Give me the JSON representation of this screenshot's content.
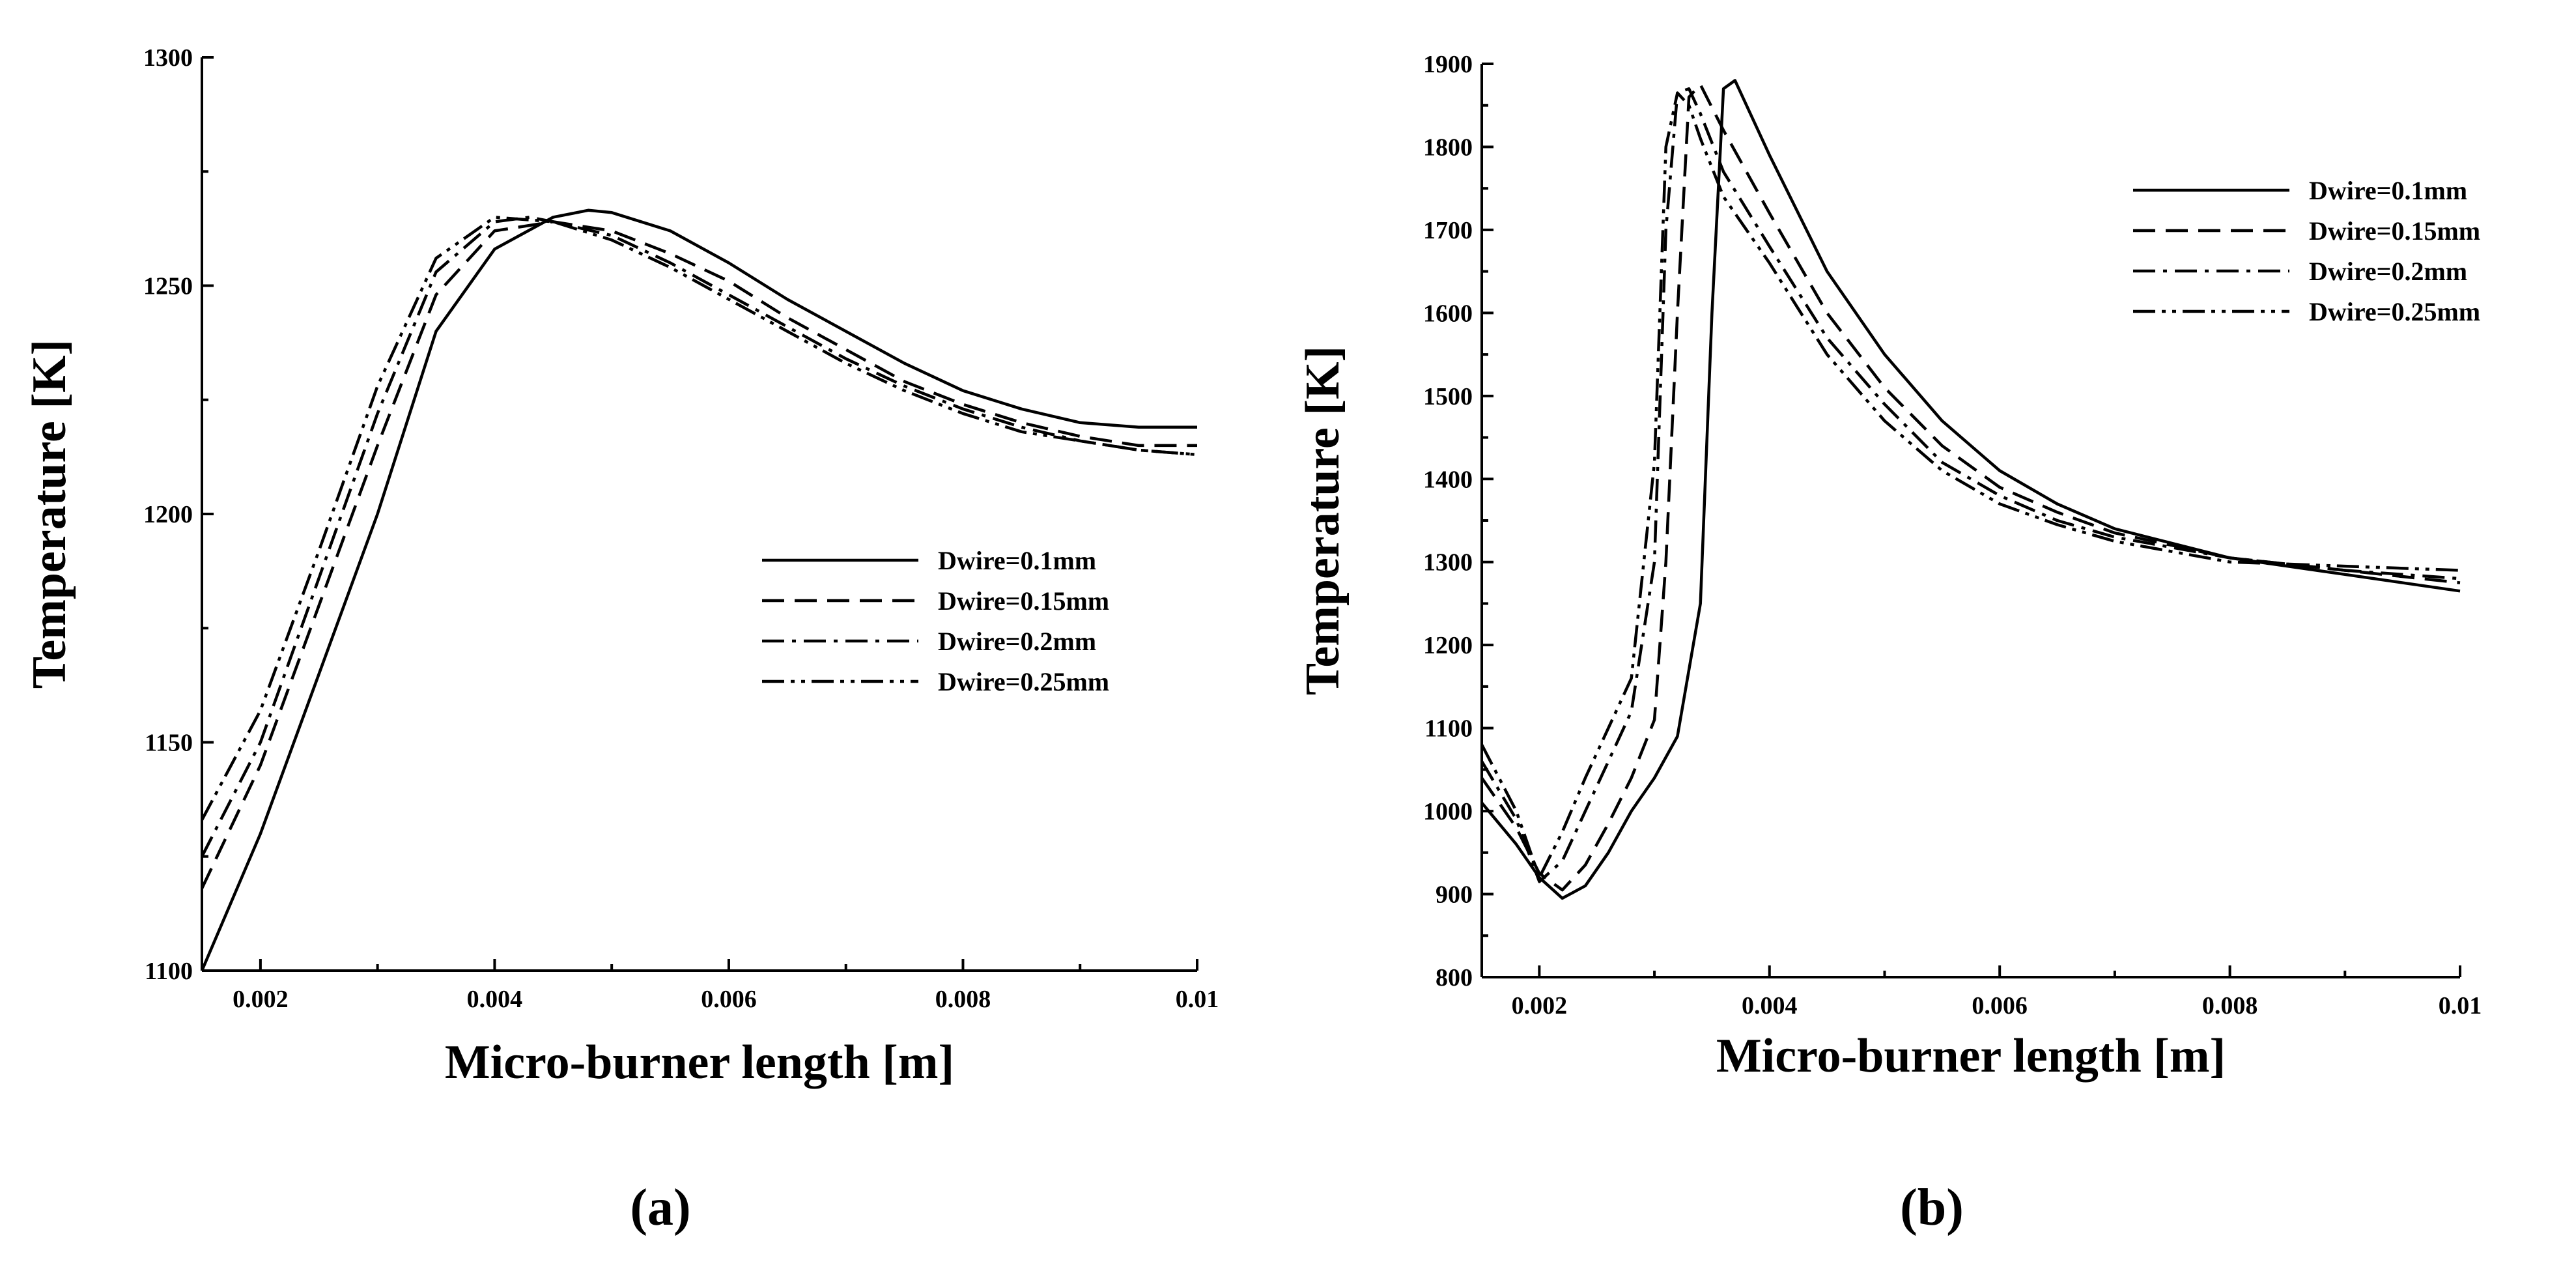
{
  "chart_data": [
    {
      "type": "line",
      "panel_label": "(a)",
      "xlabel": "Micro-burner length [m]",
      "ylabel": "Temperature [K]",
      "xlim": [
        0.0015,
        0.01
      ],
      "ylim": [
        1100,
        1300
      ],
      "xticks": [
        0.002,
        0.004,
        0.006,
        0.008,
        0.01
      ],
      "xtick_labels": [
        "0.002",
        "0.004",
        "0.006",
        "0.008",
        "0.01"
      ],
      "yticks": [
        1100,
        1150,
        1200,
        1250,
        1300
      ],
      "ytick_labels": [
        "1100",
        "1150",
        "1200",
        "1250",
        "1300"
      ],
      "legend_position": "middle-right",
      "series": [
        {
          "name": "Dwire=0.1mm",
          "style": "solid",
          "x": [
            0.0015,
            0.002,
            0.0025,
            0.003,
            0.0035,
            0.004,
            0.0045,
            0.0048,
            0.005,
            0.0055,
            0.006,
            0.0065,
            0.007,
            0.0075,
            0.008,
            0.0085,
            0.009,
            0.0095,
            0.01
          ],
          "y": [
            1100,
            1130,
            1165,
            1200,
            1240,
            1258,
            1265,
            1266.5,
            1266,
            1262,
            1255,
            1247,
            1240,
            1233,
            1227,
            1223,
            1220,
            1219,
            1219
          ]
        },
        {
          "name": "Dwire=0.15mm",
          "style": "dashed",
          "x": [
            0.0015,
            0.002,
            0.0025,
            0.003,
            0.0035,
            0.004,
            0.0045,
            0.005,
            0.0055,
            0.006,
            0.0065,
            0.007,
            0.0075,
            0.008,
            0.0085,
            0.009,
            0.0095,
            0.01
          ],
          "y": [
            1118,
            1145,
            1180,
            1215,
            1248,
            1262,
            1264,
            1262,
            1257,
            1251,
            1243,
            1236,
            1229,
            1224,
            1220,
            1217,
            1215,
            1215
          ]
        },
        {
          "name": "Dwire=0.2mm",
          "style": "dashdot",
          "x": [
            0.0015,
            0.002,
            0.0025,
            0.003,
            0.0035,
            0.004,
            0.0043,
            0.0045,
            0.005,
            0.0055,
            0.006,
            0.0065,
            0.007,
            0.0075,
            0.008,
            0.0085,
            0.009,
            0.0095,
            0.01
          ],
          "y": [
            1125,
            1150,
            1186,
            1222,
            1253,
            1264,
            1265,
            1264,
            1261,
            1255,
            1248,
            1241,
            1234,
            1228,
            1223,
            1219,
            1216,
            1214,
            1213
          ]
        },
        {
          "name": "Dwire=0.25mm",
          "style": "dashdotdot",
          "x": [
            0.0015,
            0.002,
            0.0025,
            0.003,
            0.0035,
            0.004,
            0.0045,
            0.005,
            0.0055,
            0.006,
            0.0065,
            0.007,
            0.0075,
            0.008,
            0.0085,
            0.009,
            0.0095,
            0.01
          ],
          "y": [
            1133,
            1157,
            1192,
            1228,
            1256,
            1265,
            1264,
            1260,
            1254,
            1247,
            1240,
            1233,
            1227,
            1222,
            1218,
            1216,
            1214,
            1213
          ]
        }
      ]
    },
    {
      "type": "line",
      "panel_label": "(b)",
      "xlabel": "Micro-burner length [m]",
      "ylabel": "Temperature [K]",
      "xlim": [
        0.0015,
        0.01
      ],
      "ylim": [
        800,
        1900
      ],
      "xticks": [
        0.002,
        0.004,
        0.006,
        0.008,
        0.01
      ],
      "xtick_labels": [
        "0.002",
        "0.004",
        "0.006",
        "0.008",
        "0.01"
      ],
      "yticks": [
        800,
        900,
        1000,
        1100,
        1200,
        1300,
        1400,
        1500,
        1600,
        1700,
        1800,
        1900
      ],
      "ytick_labels": [
        "800",
        "900",
        "1000",
        "1100",
        "1200",
        "1300",
        "1400",
        "1500",
        "1600",
        "1700",
        "1800",
        "1900"
      ],
      "legend_position": "top-right",
      "series": [
        {
          "name": "Dwire=0.1mm",
          "style": "solid",
          "x": [
            0.0015,
            0.0018,
            0.002,
            0.0022,
            0.0024,
            0.0026,
            0.0028,
            0.003,
            0.0032,
            0.0034,
            0.0035,
            0.0036,
            0.0037,
            0.004,
            0.0045,
            0.005,
            0.0055,
            0.006,
            0.0065,
            0.007,
            0.008,
            0.009,
            0.01
          ],
          "y": [
            1010,
            960,
            920,
            895,
            910,
            950,
            1000,
            1040,
            1090,
            1250,
            1600,
            1870,
            1880,
            1790,
            1650,
            1550,
            1470,
            1410,
            1370,
            1340,
            1305,
            1285,
            1265
          ]
        },
        {
          "name": "Dwire=0.15mm",
          "style": "dashed",
          "x": [
            0.0015,
            0.0018,
            0.002,
            0.0022,
            0.0024,
            0.0026,
            0.0028,
            0.003,
            0.0031,
            0.0032,
            0.0033,
            0.0034,
            0.0036,
            0.004,
            0.0045,
            0.005,
            0.0055,
            0.006,
            0.0065,
            0.007,
            0.008,
            0.009,
            0.01
          ],
          "y": [
            1040,
            980,
            925,
            905,
            935,
            985,
            1040,
            1110,
            1300,
            1600,
            1860,
            1875,
            1820,
            1720,
            1600,
            1510,
            1440,
            1390,
            1360,
            1335,
            1305,
            1290,
            1275
          ]
        },
        {
          "name": "Dwire=0.2mm",
          "style": "dashdot",
          "x": [
            0.0015,
            0.0018,
            0.002,
            0.0022,
            0.0024,
            0.0026,
            0.0028,
            0.003,
            0.0031,
            0.0032,
            0.0033,
            0.0034,
            0.0036,
            0.004,
            0.0045,
            0.005,
            0.0055,
            0.006,
            0.0065,
            0.007,
            0.008,
            0.009,
            0.01
          ],
          "y": [
            1060,
            990,
            915,
            940,
            1000,
            1060,
            1120,
            1300,
            1700,
            1865,
            1870,
            1840,
            1770,
            1680,
            1570,
            1490,
            1420,
            1380,
            1350,
            1330,
            1305,
            1290,
            1280
          ]
        },
        {
          "name": "Dwire=0.25mm",
          "style": "dashdotdot",
          "x": [
            0.0015,
            0.0018,
            0.002,
            0.0022,
            0.0024,
            0.0026,
            0.0028,
            0.003,
            0.0031,
            0.0032,
            0.0033,
            0.0034,
            0.0036,
            0.004,
            0.0045,
            0.005,
            0.0055,
            0.006,
            0.0065,
            0.007,
            0.008,
            0.009,
            0.01
          ],
          "y": [
            1080,
            1000,
            920,
            975,
            1040,
            1100,
            1160,
            1420,
            1800,
            1865,
            1850,
            1810,
            1740,
            1660,
            1550,
            1470,
            1410,
            1370,
            1345,
            1325,
            1300,
            1295,
            1290
          ]
        }
      ]
    }
  ]
}
